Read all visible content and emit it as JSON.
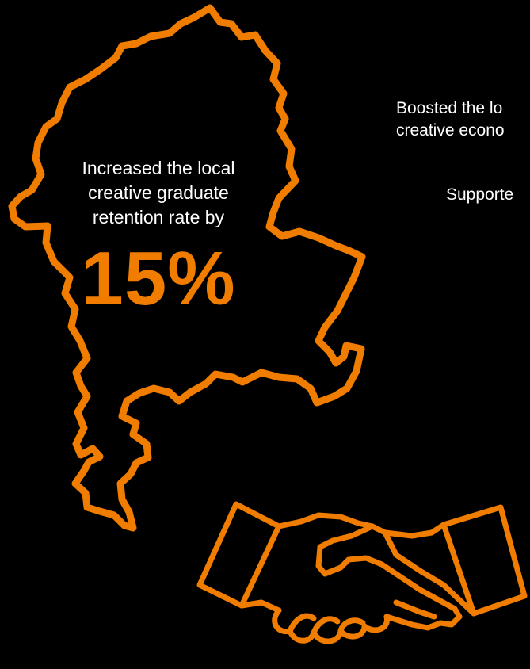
{
  "colors": {
    "background": "#000000",
    "accent": "#f07c00",
    "text": "#ffffff"
  },
  "stat": {
    "caption": "Increased the local\ncreative graduate\nretention rate by",
    "value": "15%"
  },
  "side_text": {
    "line1": "Boosted the lo",
    "line2": "creative econo",
    "line3": "Supporte"
  },
  "icons": {
    "map": "region-map-outline-icon",
    "handshake": "handshake-icon"
  }
}
